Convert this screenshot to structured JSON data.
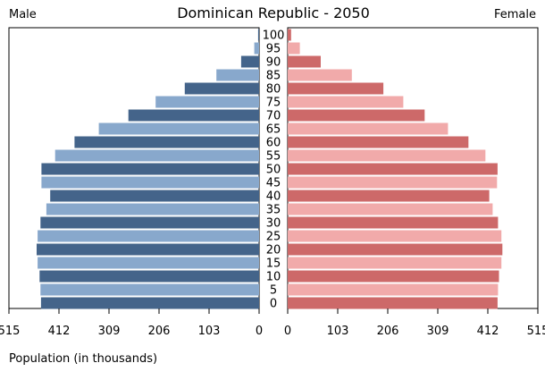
{
  "chart_data": {
    "type": "bar",
    "orientation": "horizontal",
    "layout": "population-pyramid",
    "title": "Dominican Republic - 2050",
    "left_label": "Male",
    "right_label": "Female",
    "xlabel": "Population (in thousands)",
    "xlim": [
      0,
      515
    ],
    "ticks": [
      "515",
      "412",
      "309",
      "206",
      "103",
      "0"
    ],
    "ticks_right": [
      "0",
      "103",
      "206",
      "309",
      "412",
      "515"
    ],
    "categories": [
      "100",
      "95",
      "90",
      "85",
      "80",
      "75",
      "70",
      "65",
      "60",
      "55",
      "50",
      "45",
      "40",
      "35",
      "30",
      "25",
      "20",
      "15",
      "10",
      "5",
      "0"
    ],
    "series": [
      {
        "name": "Male",
        "values": [
          2,
          10,
          37,
          88,
          153,
          213,
          269,
          330,
          380,
          420,
          448,
          448,
          430,
          438,
          450,
          456,
          458,
          456,
          452,
          450,
          449
        ]
      },
      {
        "name": "Female",
        "values": [
          7,
          25,
          68,
          132,
          197,
          238,
          282,
          330,
          372,
          407,
          432,
          431,
          415,
          422,
          433,
          440,
          442,
          440,
          435,
          433,
          432
        ]
      }
    ]
  },
  "colors": {
    "male_dark": "#44648a",
    "male_light": "#88a8cc",
    "female_dark": "#cd6969",
    "female_light": "#f1aaaa"
  }
}
